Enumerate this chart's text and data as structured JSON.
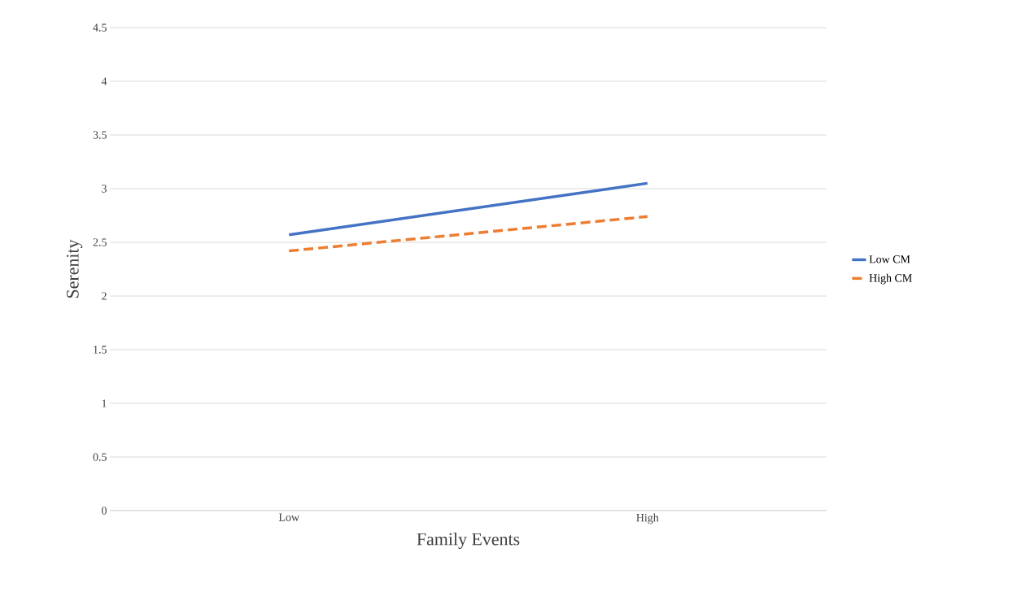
{
  "chart_data": {
    "type": "line",
    "xlabel": "Family Events",
    "ylabel": "Serenity",
    "categories": [
      "Low",
      "High"
    ],
    "series": [
      {
        "name": "Low CM",
        "color": "#4472c4",
        "line_style": "solid",
        "values": [
          2.57,
          3.05
        ]
      },
      {
        "name": "High CM",
        "color": "#ed7d31",
        "line_style": "dashed",
        "values": [
          2.42,
          2.74
        ]
      }
    ],
    "ylim": [
      0,
      4.5
    ],
    "yticks": [
      0,
      0.5,
      1,
      1.5,
      2,
      2.5,
      3,
      3.5,
      4,
      4.5
    ],
    "grid": "y",
    "legend": "right",
    "marker": "none"
  }
}
